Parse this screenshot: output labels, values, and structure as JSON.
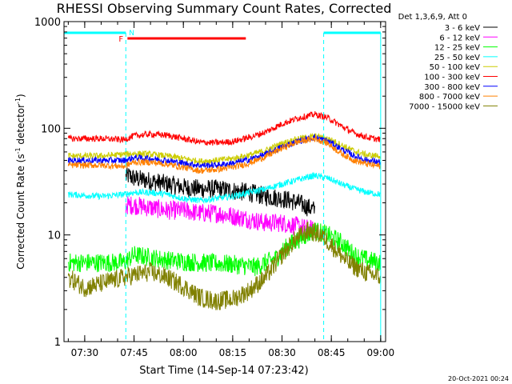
{
  "chart_data": {
    "type": "line",
    "title": "RHESSI Observing Summary Count Rates, Corrected",
    "xlabel": "Start Time (14-Sep-14 07:23:42)",
    "ylabel": "Corrected Count Rate (s⁻¹ detector⁻¹)",
    "ylabel_parts": [
      "Corrected Count Rate (s",
      "-1",
      " detector",
      "-1",
      ")"
    ],
    "y_scale": "log",
    "ylim": [
      1,
      1000
    ],
    "xlim": [
      "07:23:42",
      "09:01:30"
    ],
    "x_ticks": [
      "07:30",
      "07:45",
      "08:00",
      "08:15",
      "08:30",
      "08:45",
      "09:00"
    ],
    "y_ticks": [
      "1",
      "10",
      "100",
      "1000"
    ],
    "legend_title": "Det 1,3,6,9, Att 0",
    "legend_position": "right",
    "footer": "20-Oct-2021 00:24",
    "annotations": {
      "night": {
        "label": "N",
        "intervals": [
          [
            "07:23:42",
            "07:42:30"
          ],
          [
            "08:42:40",
            "09:00:00"
          ]
        ],
        "color": "#00ffff"
      },
      "flare": {
        "label": "F",
        "interval": [
          "07:43:00",
          "08:19:00"
        ],
        "color": "#ff0000"
      }
    },
    "series": [
      {
        "name": "3 - 6 keV",
        "color": "#000000",
        "points": [
          [
            "07:42:30",
            35
          ],
          [
            "07:43:30",
            36
          ],
          [
            "07:45:00",
            34
          ],
          [
            "07:50:00",
            32
          ],
          [
            "07:55:00",
            30
          ],
          [
            "08:00:00",
            28
          ],
          [
            "08:05:00",
            27
          ],
          [
            "08:10:00",
            27
          ],
          [
            "08:15:00",
            26
          ],
          [
            "08:20:00",
            25
          ],
          [
            "08:25:00",
            23
          ],
          [
            "08:30:00",
            22
          ],
          [
            "08:35:00",
            20
          ],
          [
            "08:40:00",
            17
          ]
        ]
      },
      {
        "name": "6 - 12 keV",
        "color": "#ff00ff",
        "points": [
          [
            "07:42:30",
            19
          ],
          [
            "07:45:00",
            19
          ],
          [
            "07:50:00",
            18
          ],
          [
            "07:55:00",
            17
          ],
          [
            "08:00:00",
            17
          ],
          [
            "08:05:00",
            16
          ],
          [
            "08:10:00",
            16
          ],
          [
            "08:15:00",
            15
          ],
          [
            "08:20:00",
            14
          ],
          [
            "08:25:00",
            13
          ],
          [
            "08:30:00",
            13
          ],
          [
            "08:35:00",
            12
          ],
          [
            "08:40:00",
            11
          ]
        ]
      },
      {
        "name": "12 - 25 keV",
        "color": "#00ff00",
        "points": [
          [
            "07:25:00",
            5.5
          ],
          [
            "07:35:00",
            5.5
          ],
          [
            "07:42:00",
            5.5
          ],
          [
            "07:45:00",
            6.5
          ],
          [
            "07:55:00",
            5.8
          ],
          [
            "08:05:00",
            5.5
          ],
          [
            "08:15:00",
            5.3
          ],
          [
            "08:22:00",
            5.0
          ],
          [
            "08:28:00",
            6.0
          ],
          [
            "08:32:00",
            8.0
          ],
          [
            "08:36:00",
            9.5
          ],
          [
            "08:40:00",
            11
          ],
          [
            "08:44:00",
            10
          ],
          [
            "08:48:00",
            8.5
          ],
          [
            "08:52:00",
            6.5
          ],
          [
            "08:56:00",
            5.8
          ],
          [
            "09:00:00",
            5.5
          ]
        ]
      },
      {
        "name": "25 - 50 keV",
        "color": "#00ffff",
        "points": [
          [
            "07:25:00",
            24
          ],
          [
            "07:35:00",
            23
          ],
          [
            "07:42:00",
            24
          ],
          [
            "07:45:00",
            25
          ],
          [
            "07:50:00",
            25
          ],
          [
            "07:55:00",
            24
          ],
          [
            "08:00:00",
            22
          ],
          [
            "08:05:00",
            21
          ],
          [
            "08:10:00",
            22
          ],
          [
            "08:15:00",
            23
          ],
          [
            "08:20:00",
            25
          ],
          [
            "08:25:00",
            27
          ],
          [
            "08:30:00",
            30
          ],
          [
            "08:35:00",
            33
          ],
          [
            "08:38:00",
            35
          ],
          [
            "08:40:00",
            36
          ],
          [
            "08:44:00",
            34
          ],
          [
            "08:48:00",
            30
          ],
          [
            "08:52:00",
            27
          ],
          [
            "08:56:00",
            25
          ],
          [
            "09:00:00",
            24
          ]
        ]
      },
      {
        "name": "50 - 100 keV",
        "color": "#cccc00",
        "points": [
          [
            "07:25:00",
            55
          ],
          [
            "07:35:00",
            55
          ],
          [
            "07:42:00",
            57
          ],
          [
            "07:45:00",
            58
          ],
          [
            "07:50:00",
            57
          ],
          [
            "07:55:00",
            55
          ],
          [
            "08:00:00",
            52
          ],
          [
            "08:05:00",
            49
          ],
          [
            "08:10:00",
            50
          ],
          [
            "08:15:00",
            52
          ],
          [
            "08:20:00",
            56
          ],
          [
            "08:25:00",
            62
          ],
          [
            "08:30:00",
            72
          ],
          [
            "08:35:00",
            80
          ],
          [
            "08:40:00",
            84
          ],
          [
            "08:44:00",
            80
          ],
          [
            "08:48:00",
            70
          ],
          [
            "08:52:00",
            61
          ],
          [
            "08:56:00",
            56
          ],
          [
            "09:00:00",
            55
          ]
        ]
      },
      {
        "name": "100 - 300 keV",
        "color": "#ff0000",
        "points": [
          [
            "07:25:00",
            80
          ],
          [
            "07:35:00",
            80
          ],
          [
            "07:42:00",
            78
          ],
          [
            "07:45:00",
            85
          ],
          [
            "07:50:00",
            88
          ],
          [
            "07:55:00",
            86
          ],
          [
            "08:00:00",
            80
          ],
          [
            "08:05:00",
            74
          ],
          [
            "08:10:00",
            73
          ],
          [
            "08:15:00",
            75
          ],
          [
            "08:20:00",
            82
          ],
          [
            "08:25:00",
            92
          ],
          [
            "08:30:00",
            110
          ],
          [
            "08:35:00",
            125
          ],
          [
            "08:40:00",
            135
          ],
          [
            "08:44:00",
            125
          ],
          [
            "08:48:00",
            105
          ],
          [
            "08:52:00",
            90
          ],
          [
            "08:56:00",
            82
          ],
          [
            "09:00:00",
            78
          ]
        ]
      },
      {
        "name": "300 - 800 keV",
        "color": "#0000ff",
        "points": [
          [
            "07:25:00",
            50
          ],
          [
            "07:35:00",
            50
          ],
          [
            "07:42:00",
            50
          ],
          [
            "07:45:00",
            53
          ],
          [
            "07:50:00",
            52
          ],
          [
            "07:55:00",
            50
          ],
          [
            "08:00:00",
            47
          ],
          [
            "08:05:00",
            45
          ],
          [
            "08:10:00",
            45
          ],
          [
            "08:15:00",
            47
          ],
          [
            "08:20:00",
            51
          ],
          [
            "08:25:00",
            57
          ],
          [
            "08:30:00",
            67
          ],
          [
            "08:35:00",
            76
          ],
          [
            "08:40:00",
            82
          ],
          [
            "08:44:00",
            76
          ],
          [
            "08:48:00",
            64
          ],
          [
            "08:52:00",
            55
          ],
          [
            "08:56:00",
            50
          ],
          [
            "09:00:00",
            48
          ]
        ]
      },
      {
        "name": "800 - 7000 keV",
        "color": "#ff8000",
        "points": [
          [
            "07:25:00",
            45
          ],
          [
            "07:35:00",
            45
          ],
          [
            "07:42:00",
            44
          ],
          [
            "07:45:00",
            48
          ],
          [
            "07:50:00",
            48
          ],
          [
            "07:55:00",
            46
          ],
          [
            "08:00:00",
            43
          ],
          [
            "08:05:00",
            40
          ],
          [
            "08:10:00",
            41
          ],
          [
            "08:15:00",
            43
          ],
          [
            "08:20:00",
            47
          ],
          [
            "08:25:00",
            54
          ],
          [
            "08:30:00",
            65
          ],
          [
            "08:35:00",
            75
          ],
          [
            "08:40:00",
            80
          ],
          [
            "08:44:00",
            72
          ],
          [
            "08:48:00",
            58
          ],
          [
            "08:52:00",
            50
          ],
          [
            "08:56:00",
            46
          ],
          [
            "09:00:00",
            44
          ]
        ]
      },
      {
        "name": "7000 - 15000 keV",
        "color": "#808000",
        "points": [
          [
            "07:25:00",
            4.0
          ],
          [
            "07:30:00",
            3.2
          ],
          [
            "07:35:00",
            3.5
          ],
          [
            "07:42:00",
            4.0
          ],
          [
            "07:45:00",
            4.2
          ],
          [
            "07:50:00",
            4.5
          ],
          [
            "07:55:00",
            4.0
          ],
          [
            "08:00:00",
            3.3
          ],
          [
            "08:05:00",
            2.6
          ],
          [
            "08:10:00",
            2.4
          ],
          [
            "08:15:00",
            2.5
          ],
          [
            "08:20:00",
            3.0
          ],
          [
            "08:25:00",
            4.0
          ],
          [
            "08:30:00",
            6.5
          ],
          [
            "08:34:00",
            9.0
          ],
          [
            "08:38:00",
            11
          ],
          [
            "08:42:00",
            10
          ],
          [
            "08:46:00",
            7.5
          ],
          [
            "08:50:00",
            5.5
          ],
          [
            "08:55:00",
            4.5
          ],
          [
            "09:00:00",
            4.0
          ]
        ]
      }
    ]
  }
}
